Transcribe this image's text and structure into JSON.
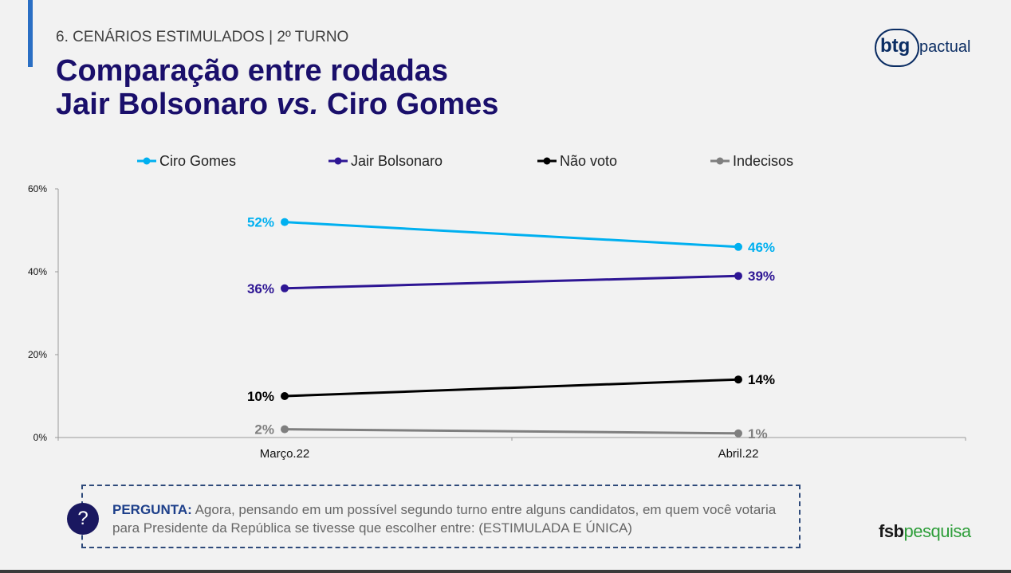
{
  "header": {
    "section": "6. CENÁRIOS ESTIMULADOS | 2º TURNO",
    "title_line1": "Comparação entre rodadas",
    "title_line2_a": "Jair Bolsonaro ",
    "title_line2_vs": "vs.",
    "title_line2_b": " Ciro Gomes"
  },
  "logos": {
    "btg": "btg",
    "pactual": "pactual",
    "fsb": "fsb",
    "pesquisa": "pesquisa"
  },
  "chart_data": {
    "type": "line",
    "title": "",
    "xlabel": "",
    "ylabel": "",
    "categories": [
      "Março.22",
      "Abril.22"
    ],
    "ylim": [
      0,
      60
    ],
    "yticks": [
      "0%",
      "20%",
      "40%",
      "60%"
    ],
    "legend_position": "top",
    "grid": false,
    "series": [
      {
        "name": "Ciro Gomes",
        "values": [
          52,
          46
        ],
        "labels": [
          "52%",
          "46%"
        ],
        "color": "#00b0f0"
      },
      {
        "name": "Jair Bolsonaro",
        "values": [
          36,
          39
        ],
        "labels": [
          "36%",
          "39%"
        ],
        "color": "#2e1694"
      },
      {
        "name": "Não voto",
        "values": [
          10,
          14
        ],
        "labels": [
          "10%",
          "14%"
        ],
        "color": "#000000"
      },
      {
        "name": "Indecisos",
        "values": [
          2,
          1
        ],
        "labels": [
          "2%",
          "1%"
        ],
        "color": "#7f7f7f"
      }
    ]
  },
  "question": {
    "icon": "?",
    "label": "PERGUNTA:",
    "text": " Agora, pensando em um possível segundo turno entre alguns candidatos, em quem você votaria para Presidente da República se tivesse que escolher entre: (ESTIMULADA E ÚNICA)"
  }
}
